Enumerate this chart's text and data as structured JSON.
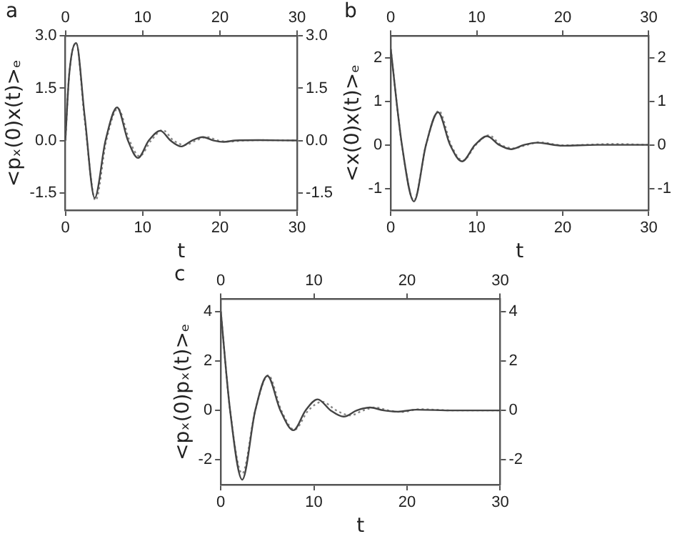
{
  "chart_data": [
    {
      "type": "line",
      "title": "a",
      "xlabel": "t",
      "ylabel": "<pₓ(0)x(t)>ₑ",
      "xlim": [
        0,
        30
      ],
      "xticks": [
        0,
        10,
        20,
        30
      ],
      "x2lim": [
        0,
        30
      ],
      "x2ticks": [
        0,
        10,
        20,
        30
      ],
      "ylim": [
        -2,
        3
      ],
      "yticks": [
        {
          "value": -1.5,
          "label": "-1.5"
        },
        {
          "value": 0,
          "label": "0.0"
        },
        {
          "value": 1.5,
          "label": "1.5"
        },
        {
          "value": 3,
          "label": "3.0"
        }
      ],
      "y2lim": [
        -2,
        3
      ],
      "y2ticks": [
        {
          "value": -1.5,
          "label": "-1.5"
        },
        {
          "value": 0,
          "label": "0.0"
        },
        {
          "value": 1.5,
          "label": "1.5"
        },
        {
          "value": 3,
          "label": "3.0"
        }
      ],
      "series": [
        {
          "color": "#444444",
          "x": [
            0,
            0.5,
            1.4,
            2.5,
            3.8,
            5.2,
            6.7,
            8.1,
            9.4,
            10.8,
            12.3,
            13.6,
            15,
            16.4,
            17.8,
            19.2,
            20.5,
            22,
            25,
            30
          ],
          "values": [
            0,
            1.9,
            2.8,
            0.7,
            -1.65,
            0,
            0.95,
            0,
            -0.5,
            0,
            0.28,
            0,
            -0.17,
            0,
            0.1,
            0,
            -0.04,
            0,
            0.01,
            0
          ]
        },
        {
          "color": "#888888",
          "line_style": "dotted",
          "x": [
            0,
            0.5,
            1.4,
            2.5,
            3.9,
            5.3,
            6.8,
            8.3,
            9.6,
            11.1,
            12.6,
            14,
            15.5,
            16.9,
            18.3,
            19.8,
            21.3,
            23,
            26,
            30
          ],
          "values": [
            0,
            1.9,
            2.8,
            0.6,
            -1.72,
            0,
            0.92,
            0,
            -0.45,
            0,
            0.3,
            0,
            -0.13,
            0,
            0.1,
            0,
            -0.03,
            0,
            0.01,
            0
          ]
        }
      ]
    },
    {
      "type": "line",
      "title": "b",
      "xlabel": "t",
      "ylabel": "<x(0)x(t)>ₑ",
      "xlim": [
        0,
        30
      ],
      "xticks": [
        0,
        10,
        20,
        30
      ],
      "x2lim": [
        0,
        30
      ],
      "x2ticks": [
        0,
        10,
        20,
        30
      ],
      "ylim": [
        -1.5,
        2.5
      ],
      "yticks": [
        -1,
        0,
        1,
        2
      ],
      "y2lim": [
        -1.5,
        2.5
      ],
      "y2ticks": [
        -1,
        0,
        1,
        2
      ],
      "series": [
        {
          "color": "#444444",
          "x": [
            0,
            1.3,
            2.7,
            4.1,
            5.5,
            6.9,
            8.3,
            9.8,
            11.2,
            12.6,
            14,
            15.5,
            17,
            20,
            24,
            30
          ],
          "values": [
            2.2,
            0,
            -1.3,
            0,
            0.75,
            0,
            -0.38,
            0,
            0.2,
            0,
            -0.1,
            0,
            0.05,
            -0.02,
            0,
            0
          ]
        },
        {
          "color": "#888888",
          "line_style": "dotted",
          "x": [
            0,
            1.3,
            2.7,
            4.1,
            5.6,
            7,
            8.4,
            9.9,
            11.4,
            12.8,
            14.3,
            15.8,
            17.3,
            20,
            26,
            30
          ],
          "values": [
            2.2,
            0,
            -1.28,
            0,
            0.78,
            0,
            -0.36,
            0,
            0.22,
            0,
            -0.08,
            0,
            0.06,
            -0.01,
            0.02,
            0
          ]
        }
      ]
    },
    {
      "type": "line",
      "title": "c",
      "xlabel": "t",
      "ylabel": "<pₓ(0)pₓ(t)>ₑ",
      "xlim": [
        0,
        30
      ],
      "xticks": [
        0,
        10,
        20,
        30
      ],
      "x2lim": [
        0,
        30
      ],
      "x2ticks": [
        0,
        10,
        20,
        30
      ],
      "ylim": [
        -3,
        4.5
      ],
      "yticks": [
        -2,
        0,
        2,
        4
      ],
      "y2lim": [
        -3,
        4.5
      ],
      "y2ticks": [
        -2,
        0,
        2,
        4
      ],
      "series": [
        {
          "color": "#444444",
          "x": [
            0,
            1,
            2.3,
            3.7,
            5,
            6.4,
            7.8,
            9.1,
            10.4,
            11.8,
            13.2,
            14.6,
            16,
            17.5,
            19,
            21,
            25,
            30
          ],
          "values": [
            4,
            0,
            -2.8,
            0,
            1.4,
            0,
            -0.8,
            0,
            0.45,
            0,
            -0.25,
            0,
            0.12,
            0,
            -0.05,
            0.03,
            0,
            0
          ]
        },
        {
          "color": "#888888",
          "line_style": "dotted",
          "x": [
            0,
            1,
            2.3,
            3.7,
            5.1,
            6.5,
            7.9,
            9.4,
            10.9,
            12.4,
            13.9,
            15.3,
            16.6,
            18,
            19.5,
            21.3,
            25,
            30
          ],
          "values": [
            4,
            0,
            -2.55,
            0,
            1.42,
            0,
            -0.78,
            0,
            0.35,
            0,
            -0.2,
            0,
            0.12,
            0,
            -0.06,
            0.05,
            0,
            0
          ]
        }
      ]
    }
  ]
}
